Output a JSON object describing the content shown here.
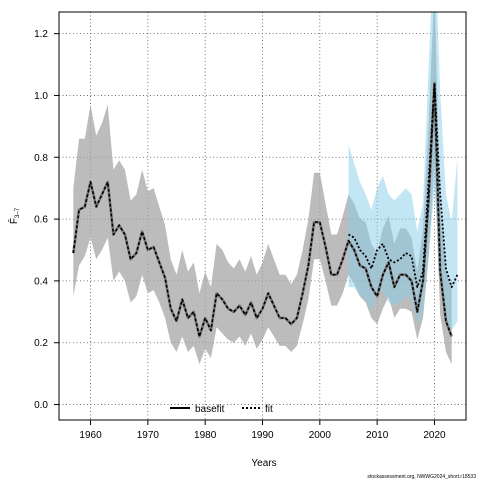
{
  "chart_data": {
    "type": "line",
    "xlabel": "Years",
    "ylabel": "F̄",
    "ylabel_sub": "3–7",
    "xlim": [
      1954.5,
      2025.5
    ],
    "ylim": [
      -0.05,
      1.27
    ],
    "x_ticks": [
      1960,
      1970,
      1980,
      1990,
      2000,
      2010,
      2020
    ],
    "y_ticks": [
      0.0,
      0.2,
      0.4,
      0.6,
      0.8,
      1.0,
      1.2
    ],
    "y_tick_labels": [
      "0.0",
      "0.2",
      "0.4",
      "0.6",
      "0.8",
      "1.0",
      "1.2"
    ],
    "grid": true,
    "legend_placement": "bottom-center",
    "watermark": "stockassessment.org, NWWG2024_short.r18533",
    "colors": {
      "basefit": "#000000",
      "basefit_band": "#a6a6a6",
      "fit": "#000000",
      "fit_band": "#87ceeb"
    },
    "series": [
      {
        "name": "basefit",
        "style": "solid",
        "x": [
          1957,
          1958,
          1959,
          1960,
          1961,
          1962,
          1963,
          1964,
          1965,
          1966,
          1967,
          1968,
          1969,
          1970,
          1971,
          1972,
          1973,
          1974,
          1975,
          1976,
          1977,
          1978,
          1979,
          1980,
          1981,
          1982,
          1983,
          1984,
          1985,
          1986,
          1987,
          1988,
          1989,
          1990,
          1991,
          1992,
          1993,
          1994,
          1995,
          1996,
          1997,
          1998,
          1999,
          2000,
          2001,
          2002,
          2003,
          2004,
          2005,
          2006,
          2007,
          2008,
          2009,
          2010,
          2011,
          2012,
          2013,
          2014,
          2015,
          2016,
          2017,
          2018,
          2019,
          2020,
          2021,
          2022,
          2023
        ],
        "y": [
          0.49,
          0.63,
          0.64,
          0.72,
          0.64,
          0.68,
          0.72,
          0.55,
          0.58,
          0.55,
          0.47,
          0.49,
          0.56,
          0.5,
          0.51,
          0.46,
          0.41,
          0.31,
          0.27,
          0.34,
          0.28,
          0.3,
          0.22,
          0.28,
          0.24,
          0.36,
          0.34,
          0.31,
          0.3,
          0.32,
          0.29,
          0.33,
          0.28,
          0.31,
          0.36,
          0.32,
          0.28,
          0.28,
          0.26,
          0.28,
          0.36,
          0.45,
          0.59,
          0.59,
          0.51,
          0.42,
          0.42,
          0.47,
          0.53,
          0.5,
          0.45,
          0.44,
          0.38,
          0.35,
          0.42,
          0.46,
          0.38,
          0.42,
          0.42,
          0.4,
          0.3,
          0.4,
          0.67,
          1.04,
          0.43,
          0.27,
          0.22
        ],
        "lower": [
          0.35,
          0.45,
          0.48,
          0.54,
          0.47,
          0.5,
          0.54,
          0.4,
          0.43,
          0.4,
          0.33,
          0.35,
          0.42,
          0.36,
          0.37,
          0.33,
          0.28,
          0.2,
          0.17,
          0.22,
          0.17,
          0.19,
          0.13,
          0.18,
          0.15,
          0.25,
          0.23,
          0.21,
          0.2,
          0.22,
          0.19,
          0.23,
          0.18,
          0.21,
          0.25,
          0.22,
          0.19,
          0.19,
          0.17,
          0.19,
          0.26,
          0.34,
          0.47,
          0.47,
          0.4,
          0.32,
          0.32,
          0.36,
          0.42,
          0.39,
          0.35,
          0.33,
          0.28,
          0.26,
          0.31,
          0.35,
          0.28,
          0.31,
          0.31,
          0.3,
          0.21,
          0.28,
          0.48,
          0.78,
          0.29,
          0.17,
          0.13
        ],
        "upper": [
          0.7,
          0.86,
          0.86,
          0.97,
          0.87,
          0.91,
          0.97,
          0.76,
          0.79,
          0.76,
          0.66,
          0.68,
          0.76,
          0.69,
          0.7,
          0.64,
          0.58,
          0.47,
          0.42,
          0.5,
          0.43,
          0.46,
          0.36,
          0.43,
          0.38,
          0.52,
          0.5,
          0.46,
          0.44,
          0.47,
          0.43,
          0.48,
          0.42,
          0.46,
          0.52,
          0.47,
          0.42,
          0.42,
          0.39,
          0.42,
          0.5,
          0.6,
          0.75,
          0.75,
          0.65,
          0.55,
          0.55,
          0.61,
          0.68,
          0.65,
          0.6,
          0.59,
          0.52,
          0.49,
          0.57,
          0.61,
          0.52,
          0.57,
          0.57,
          0.54,
          0.43,
          0.57,
          0.92,
          1.35,
          0.63,
          0.43,
          0.38
        ]
      },
      {
        "name": "fit",
        "style": "dotted",
        "x": [
          2005,
          2006,
          2007,
          2008,
          2009,
          2010,
          2011,
          2012,
          2013,
          2014,
          2015,
          2016,
          2017,
          2018,
          2019,
          2020,
          2021,
          2022,
          2023,
          2024
        ],
        "y": [
          0.55,
          0.54,
          0.5,
          0.48,
          0.44,
          0.5,
          0.52,
          0.47,
          0.46,
          0.47,
          0.49,
          0.48,
          0.38,
          0.43,
          0.73,
          1.04,
          0.68,
          0.44,
          0.38,
          0.42
        ],
        "lower": [
          0.38,
          0.38,
          0.35,
          0.34,
          0.3,
          0.36,
          0.37,
          0.33,
          0.32,
          0.33,
          0.35,
          0.34,
          0.26,
          0.3,
          0.48,
          0.7,
          0.45,
          0.28,
          0.24,
          0.27
        ],
        "upper": [
          0.84,
          0.78,
          0.72,
          0.68,
          0.63,
          0.7,
          0.74,
          0.68,
          0.66,
          0.68,
          0.7,
          0.68,
          0.56,
          0.65,
          1.1,
          1.55,
          1.01,
          0.68,
          0.59,
          0.8
        ]
      }
    ]
  }
}
